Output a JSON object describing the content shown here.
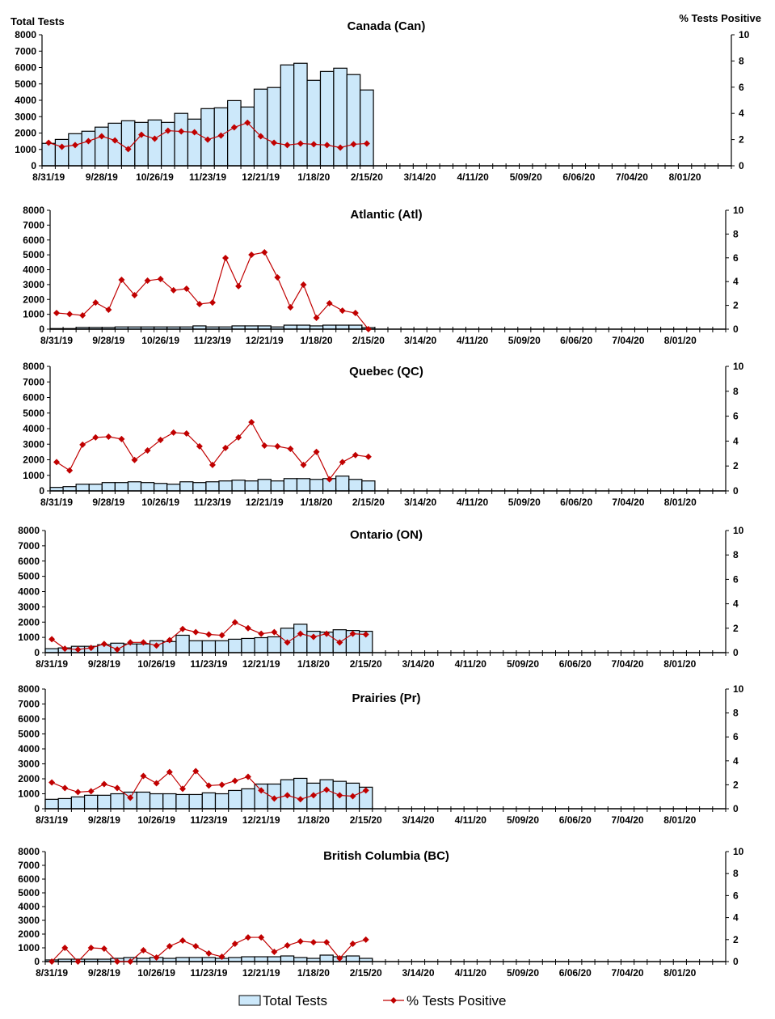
{
  "chart_data": [
    {
      "type": "bar+line",
      "title": "Canada (Can)",
      "ylabel_left": "Total Tests",
      "ylabel_right": "% Tests Positive",
      "total_tests": [
        1370,
        1610,
        1960,
        2110,
        2360,
        2600,
        2750,
        2650,
        2800,
        2650,
        3200,
        2850,
        3490,
        3540,
        3980,
        3590,
        4680,
        4780,
        6160,
        6260,
        5220,
        5760,
        5960,
        5570,
        4630
      ],
      "pct_positive": [
        1.76,
        1.45,
        1.58,
        1.88,
        2.25,
        1.94,
        1.27,
        2.37,
        2.07,
        2.68,
        2.62,
        2.56,
        2.0,
        2.31,
        2.93,
        3.29,
        2.25,
        1.76,
        1.58,
        1.7,
        1.64,
        1.58,
        1.39,
        1.64,
        1.7
      ]
    },
    {
      "type": "bar+line",
      "title": "Atlantic (Atl)",
      "total_tests": [
        40,
        40,
        110,
        110,
        110,
        150,
        150,
        150,
        150,
        150,
        150,
        220,
        150,
        150,
        220,
        220,
        220,
        150,
        270,
        270,
        220,
        270,
        270,
        270,
        100
      ],
      "pct_positive": [
        1.36,
        1.27,
        1.16,
        2.24,
        1.63,
        4.15,
        2.86,
        4.08,
        4.22,
        3.27,
        3.4,
        2.11,
        2.24,
        5.99,
        3.61,
        6.26,
        6.46,
        4.35,
        1.84,
        3.74,
        0.95,
        2.18,
        1.56,
        1.36,
        0
      ]
    },
    {
      "type": "bar+line",
      "title": "Quebec (QC)",
      "total_tests": [
        225,
        275,
        430,
        430,
        535,
        535,
        585,
        535,
        480,
        430,
        585,
        535,
        585,
        640,
        690,
        640,
        740,
        640,
        790,
        790,
        740,
        790,
        950,
        740,
        640
      ],
      "pct_positive": [
        2.31,
        1.64,
        3.71,
        4.29,
        4.35,
        4.16,
        2.48,
        3.25,
        4.09,
        4.68,
        4.61,
        3.58,
        2.09,
        3.45,
        4.29,
        5.52,
        3.64,
        3.58,
        3.38,
        2.09,
        3.13,
        0.93,
        2.31,
        2.87,
        2.74
      ]
    },
    {
      "type": "bar+line",
      "title": "Ontario (ON)",
      "total_tests": [
        260,
        310,
        415,
        415,
        520,
        620,
        570,
        570,
        780,
        725,
        1140,
        780,
        780,
        780,
        880,
        930,
        980,
        1035,
        1600,
        1860,
        1400,
        1345,
        1500,
        1450,
        1400
      ],
      "pct_positive": [
        1.1,
        0.32,
        0.26,
        0.39,
        0.71,
        0.26,
        0.84,
        0.84,
        0.58,
        1.03,
        1.94,
        1.68,
        1.49,
        1.42,
        2.48,
        2.0,
        1.55,
        1.68,
        0.84,
        1.55,
        1.29,
        1.55,
        0.84,
        1.55,
        1.49
      ]
    },
    {
      "type": "bar+line",
      "title": "Prairies (Pr)",
      "total_tests": [
        630,
        680,
        790,
        900,
        900,
        1000,
        1110,
        1110,
        1000,
        1000,
        950,
        950,
        1060,
        1000,
        1220,
        1330,
        1650,
        1650,
        1940,
        2030,
        1710,
        1940,
        1830,
        1710,
        1440
      ],
      "pct_positive": [
        2.2,
        1.73,
        1.39,
        1.46,
        2.06,
        1.73,
        0.92,
        2.74,
        2.13,
        3.07,
        1.66,
        3.14,
        1.93,
        2.0,
        2.33,
        2.67,
        1.53,
        0.85,
        1.12,
        0.79,
        1.12,
        1.59,
        1.12,
        1.05,
        1.53
      ]
    },
    {
      "type": "bar+line",
      "title": "British Columbia (BC)",
      "total_tests": [
        120,
        175,
        175,
        175,
        175,
        235,
        295,
        235,
        295,
        235,
        295,
        295,
        295,
        235,
        295,
        350,
        350,
        350,
        410,
        295,
        235,
        470,
        350,
        410,
        235
      ],
      "pct_positive": [
        0,
        1.25,
        0,
        1.25,
        1.18,
        0,
        0,
        1.03,
        0.37,
        1.4,
        1.91,
        1.4,
        0.74,
        0.44,
        1.62,
        2.2,
        2.2,
        0.88,
        1.47,
        1.84,
        1.76,
        1.76,
        0.29,
        1.62,
        1.99
      ]
    }
  ],
  "shared": {
    "x_tick_labels": [
      "8/31/19",
      "9/28/19",
      "10/26/19",
      "11/23/19",
      "12/21/19",
      "1/18/20",
      "2/15/20",
      "3/14/20",
      "4/11/20",
      "5/09/20",
      "6/06/20",
      "7/04/20",
      "8/01/20"
    ],
    "x_tick_every_weeks": 4,
    "x_weeks": 52,
    "y_left_range": [
      0,
      8000
    ],
    "y_left_ticks": [
      0,
      1000,
      2000,
      3000,
      4000,
      5000,
      6000,
      7000,
      8000
    ],
    "y_right_range": [
      0,
      10
    ],
    "y_right_ticks": [
      0,
      2,
      4,
      6,
      8,
      10
    ],
    "bar_color": "#cce8fa",
    "line_color": "#c00000",
    "grid": false
  },
  "legend": {
    "position": "bottom",
    "bars_label": "Total Tests",
    "line_label": "% Tests Positive"
  }
}
